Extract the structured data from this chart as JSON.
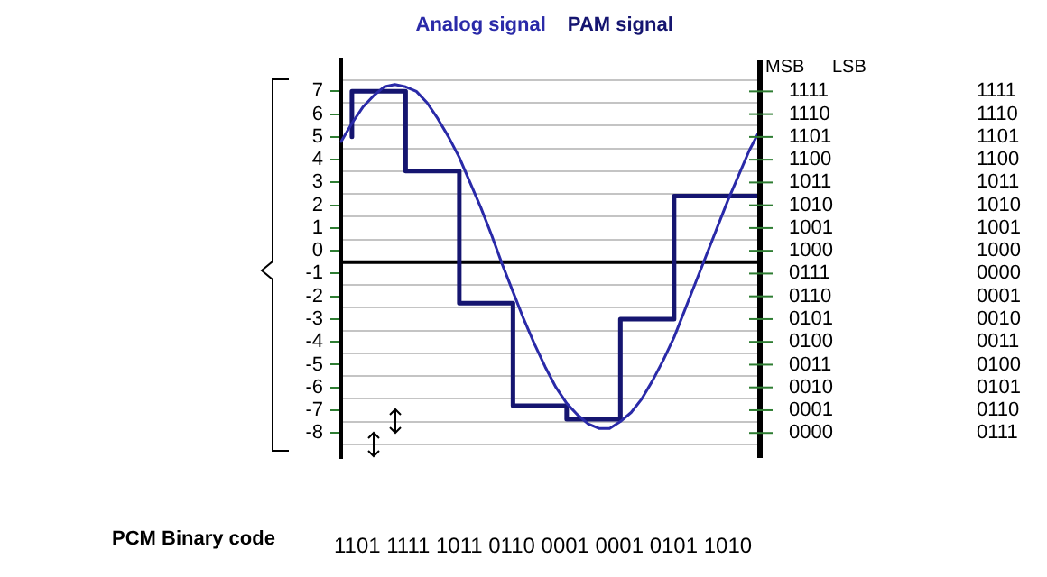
{
  "chart_data": {
    "type": "line",
    "categories": [
      null,
      null,
      null,
      null,
      null,
      null,
      null,
      null,
      null,
      null,
      null,
      null,
      null,
      null,
      null,
      null,
      null,
      null,
      null,
      null,
      null,
      null,
      null,
      null,
      null,
      null,
      null,
      null,
      null,
      null,
      null,
      null,
      null,
      null,
      null,
      null,
      null,
      null,
      null,
      null
    ],
    "series": [
      {
        "name": "Analog signal",
        "type": "line",
        "color": "#2a2aa8",
        "values": [
          4.8,
          5.6,
          6.3,
          6.8,
          7.2,
          7.3,
          7.2,
          7.0,
          6.5,
          5.8,
          5.0,
          4.1,
          3.0,
          1.9,
          0.7,
          -0.6,
          -1.8,
          -3.0,
          -4.1,
          -5.1,
          -6.0,
          -6.7,
          -7.2,
          -7.6,
          -7.8,
          -7.8,
          -7.5,
          -7.1,
          -6.5,
          -5.7,
          -4.8,
          -3.8,
          -2.6,
          -1.4,
          -0.2,
          1.0,
          2.2,
          3.3,
          4.4,
          5.3
        ]
      },
      {
        "name": "PAM signal",
        "type": "step",
        "color": "#151570",
        "values": [
          null,
          5,
          null,
          null,
          null,
          null,
          7,
          null,
          null,
          null,
          null,
          3.5,
          null,
          null,
          null,
          null,
          -2.3,
          null,
          null,
          null,
          null,
          -6.8,
          null,
          null,
          null,
          null,
          -7.4,
          null,
          null,
          null,
          null,
          -3,
          null,
          null,
          null,
          null,
          2.4,
          null,
          null,
          2.4
        ]
      }
    ],
    "ylim": [
      -9.1,
      8.4
    ],
    "yticks": [
      {
        "value": 7.5,
        "label": null
      },
      7,
      {
        "value": 6.5,
        "label": null
      },
      6,
      {
        "value": 5.5,
        "label": null
      },
      5,
      {
        "value": 4.5,
        "label": null
      },
      4,
      {
        "value": 3.5,
        "label": null
      },
      3,
      {
        "value": 2.5,
        "label": null
      },
      2,
      {
        "value": 1.5,
        "label": null
      },
      1,
      {
        "value": 0.5,
        "label": null
      },
      0,
      -1,
      {
        "value": -1.5,
        "label": null
      },
      -2,
      {
        "value": -2.5,
        "label": null
      },
      -3,
      {
        "value": -3.5,
        "label": null
      },
      -4,
      {
        "value": -4.5,
        "label": null
      },
      -5,
      {
        "value": -5.5,
        "label": null
      },
      -6,
      {
        "value": -6.5,
        "label": null
      },
      -7,
      {
        "value": -7.5,
        "label": null
      },
      -8,
      {
        "value": -8.5,
        "label": null
      }
    ],
    "ref_lines": [
      {
        "axis": "y",
        "value": -0.5,
        "color": "#000000"
      }
    ],
    "annotations": [
      "PCM Binary code",
      "1101 1111 1011 0110 0001 0001 0101 1010",
      "MSB",
      "LSB",
      "1111",
      "1110",
      "1101",
      "1100",
      "1011",
      "1010",
      "1001",
      "1000",
      "0111",
      "0110",
      "0101",
      "0100",
      "0011",
      "0010",
      "0001",
      "0000",
      "1111",
      "1110",
      "1101",
      "1100",
      "1011",
      "1010",
      "1001",
      "1000",
      "0000",
      "0001",
      "0010",
      "0011",
      "0100",
      "0101",
      "0110",
      "0111"
    ],
    "grid": "y",
    "legend": "top",
    "marker": "none",
    "tick_labels": "y"
  }
}
